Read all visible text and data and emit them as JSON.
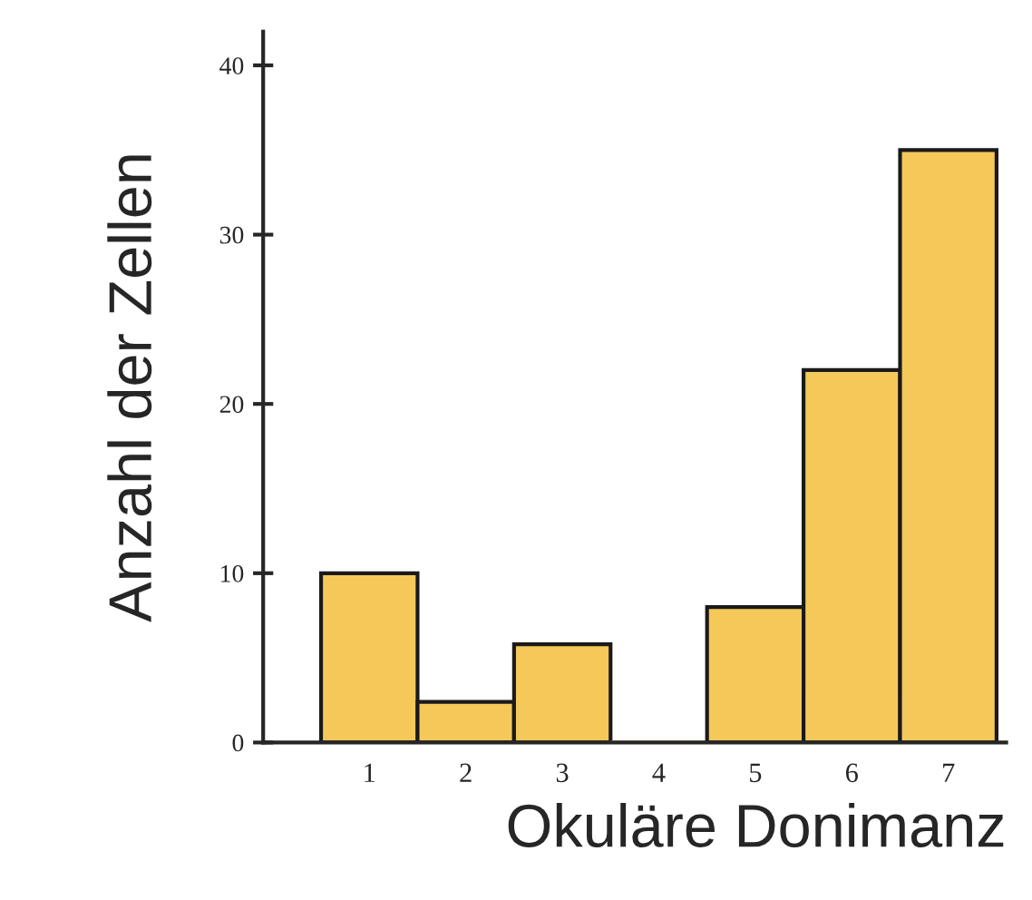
{
  "chart_data": {
    "type": "bar",
    "xlabel": "Okuläre Donimanz",
    "ylabel": "Anzahl der Zellen",
    "categories": [
      "1",
      "2",
      "3",
      "4",
      "5",
      "6",
      "7"
    ],
    "values": [
      10,
      2.4,
      5.8,
      0,
      8,
      22,
      35
    ],
    "color": "#f5c85a",
    "ylim": [
      0,
      42
    ],
    "yticks": [
      0,
      10,
      20,
      30,
      40
    ],
    "grid": false
  }
}
